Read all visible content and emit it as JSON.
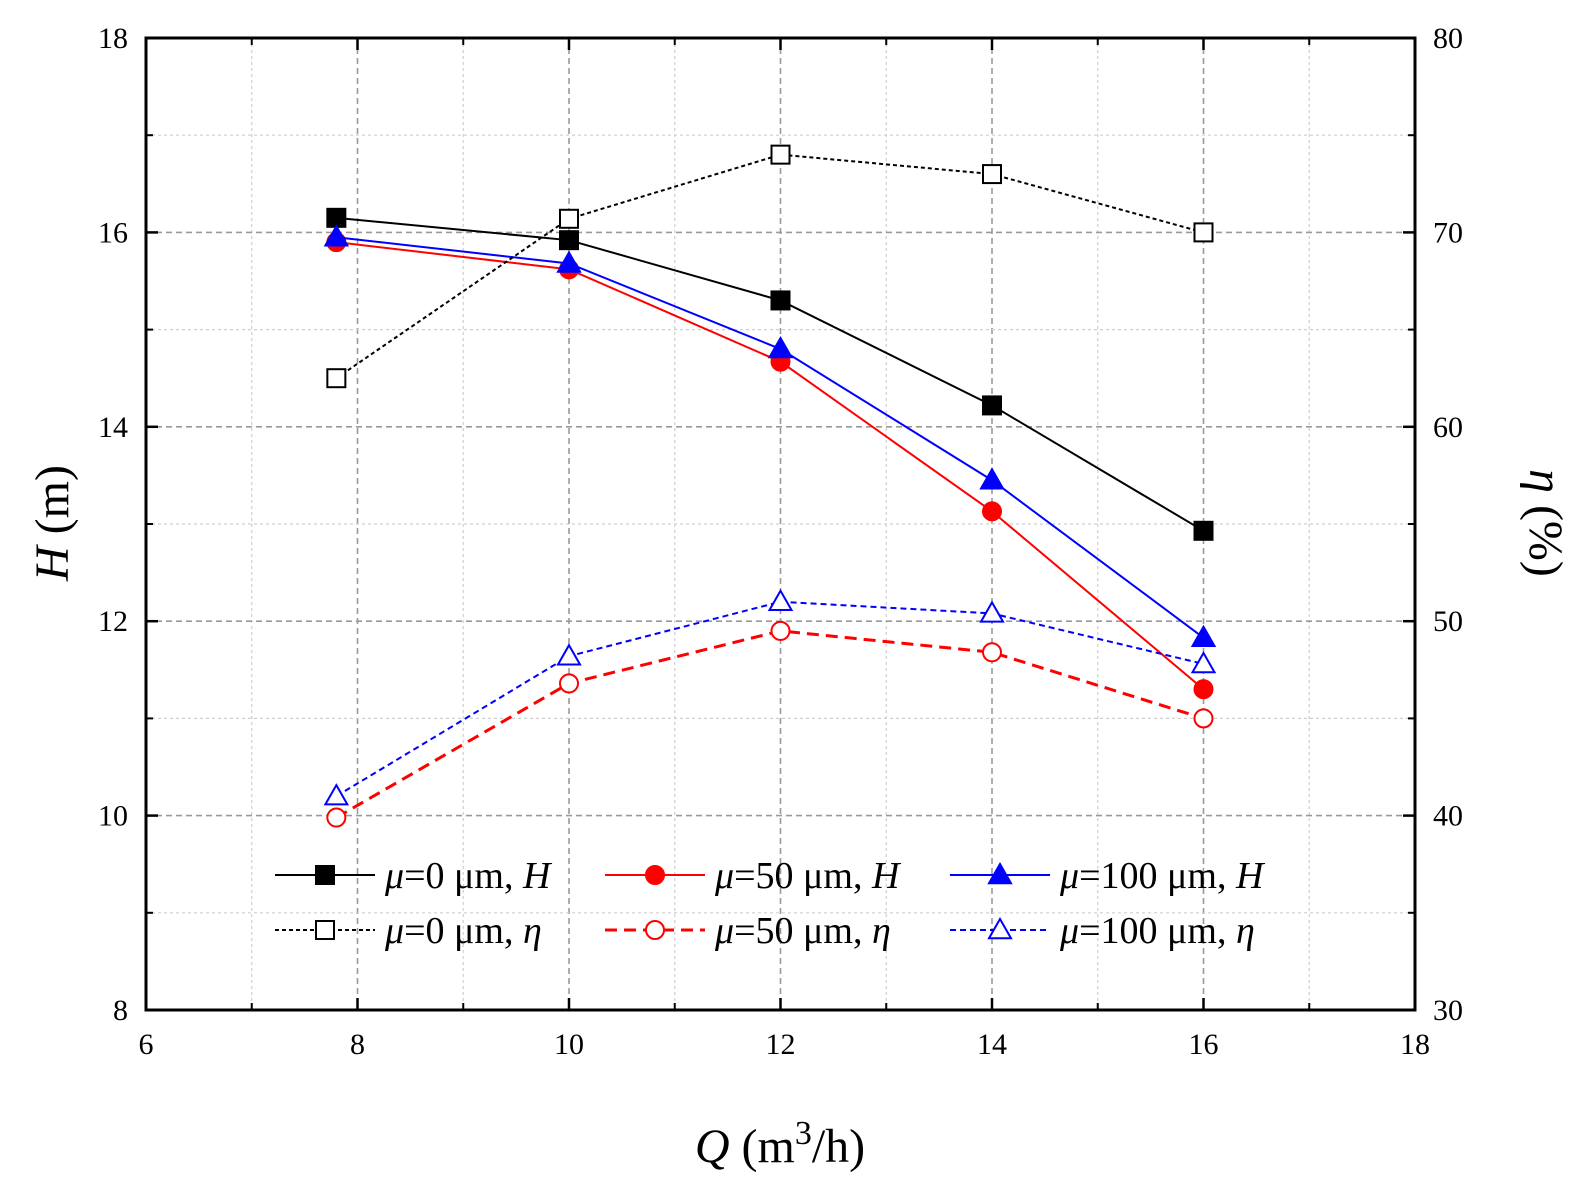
{
  "chart_data": {
    "type": "line",
    "xlabel": {
      "symbol": "Q",
      "unit_pre": " (m",
      "unit_sup": "3",
      "unit_post": "/h)"
    },
    "ylabel_left": {
      "symbol": "H",
      "unit": " (m)"
    },
    "ylabel_right": {
      "symbol": "η",
      "unit": " (%)"
    },
    "xlim": [
      6,
      18
    ],
    "ylim_left": [
      8,
      18
    ],
    "ylim_right": [
      30,
      80
    ],
    "xticks": [
      6,
      8,
      10,
      12,
      14,
      16,
      18
    ],
    "yticks_left": [
      8,
      10,
      12,
      14,
      16,
      18
    ],
    "yticks_right": [
      30,
      40,
      50,
      60,
      70,
      80
    ],
    "grid": true,
    "legend_position": "bottom-center",
    "series": [
      {
        "name": "μ=0 μm, H",
        "label_symbol": "μ",
        "label_mid": "=0 μm, ",
        "label_var": "H",
        "axis": "left",
        "color": "#000000",
        "marker": "square-filled",
        "line": "solid",
        "x": [
          7.8,
          10,
          12,
          14,
          16
        ],
        "y": [
          16.15,
          15.92,
          15.3,
          14.22,
          12.93
        ]
      },
      {
        "name": "μ=50 μm, H",
        "label_symbol": "μ",
        "label_mid": "=50 μm, ",
        "label_var": "H",
        "axis": "left",
        "color": "#ff0000",
        "marker": "circle-filled",
        "line": "solid",
        "x": [
          7.8,
          10,
          12,
          14,
          16
        ],
        "y": [
          15.9,
          15.62,
          14.67,
          13.13,
          11.3
        ]
      },
      {
        "name": "μ=100 μm, H",
        "label_symbol": "μ",
        "label_mid": "=100 μm, ",
        "label_var": "H",
        "axis": "left",
        "color": "#0000ff",
        "marker": "triangle-filled",
        "line": "solid",
        "x": [
          7.8,
          10,
          12,
          14,
          16
        ],
        "y": [
          15.95,
          15.68,
          14.8,
          13.45,
          11.83
        ]
      },
      {
        "name": "μ=0 μm, η",
        "label_symbol": "μ",
        "label_mid": "=0 μm, ",
        "label_var": "η",
        "axis": "right",
        "color": "#000000",
        "marker": "square-open",
        "line": "dotted",
        "x": [
          7.8,
          10,
          12,
          14,
          16
        ],
        "y": [
          62.5,
          70.7,
          74.0,
          73.0,
          70.0
        ]
      },
      {
        "name": "μ=50 μm, η",
        "label_symbol": "μ",
        "label_mid": "=50 μm, ",
        "label_var": "η",
        "axis": "right",
        "color": "#ff0000",
        "marker": "circle-open",
        "line": "dashed",
        "x": [
          7.8,
          10,
          12,
          14,
          16
        ],
        "y": [
          39.9,
          46.8,
          49.5,
          48.4,
          45.0
        ]
      },
      {
        "name": "μ=100 μm, η",
        "label_symbol": "μ",
        "label_mid": "=100 μm, ",
        "label_var": "η",
        "axis": "right",
        "color": "#0000ff",
        "marker": "triangle-open",
        "line": "short-dash",
        "x": [
          7.8,
          10,
          12,
          14,
          16
        ],
        "y": [
          41.0,
          48.2,
          51.0,
          50.4,
          47.8
        ]
      }
    ]
  }
}
